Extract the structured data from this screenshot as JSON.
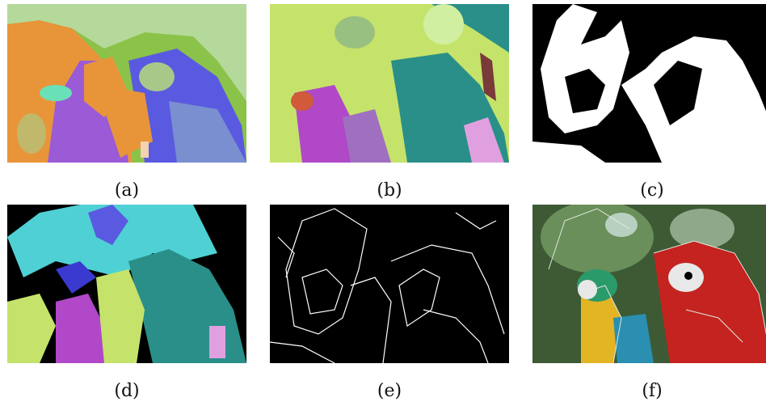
{
  "figure": {
    "panels": [
      {
        "id": "a",
        "caption": "(a)",
        "kind": "segmentation-color"
      },
      {
        "id": "b",
        "caption": "(b)",
        "kind": "segmentation-color"
      },
      {
        "id": "c",
        "caption": "(c)",
        "kind": "binary-mask"
      },
      {
        "id": "d",
        "caption": "(d)",
        "kind": "segmentation-color"
      },
      {
        "id": "e",
        "caption": "(e)",
        "kind": "edge-map"
      },
      {
        "id": "f",
        "caption": "(f)",
        "kind": "photo-with-contours"
      }
    ],
    "colors": {
      "background": "#ffffff",
      "orange": "#e8953a",
      "green": "#8bc34a",
      "lime": "#c5e36a",
      "purple": "#9b5bd6",
      "blue": "#5a5ae0",
      "teal": "#2a8f88",
      "cyan": "#4fd0d4",
      "magenta": "#b048c8",
      "black": "#000000",
      "white": "#ffffff",
      "parrot-red": "#c4231f",
      "parrot-yellow": "#e3b423",
      "foliage": "#3d5a35"
    }
  }
}
